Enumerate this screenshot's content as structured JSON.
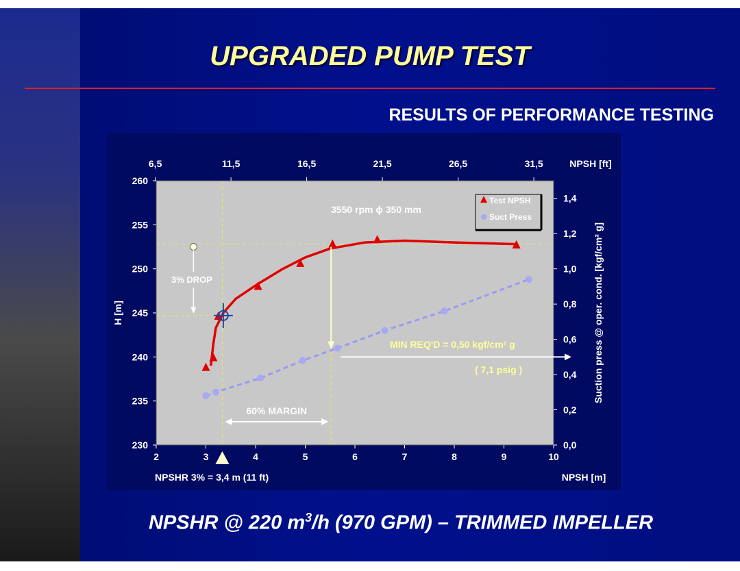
{
  "slide": {
    "title": "UPGRADED PUMP TEST",
    "subtitle": "RESULTS OF PERFORMANCE TESTING",
    "footer_prefix": "NPSHR @ 220 m",
    "footer_sup": "3",
    "footer_suffix": "/h (970 GPM) – TRIMMED IMPELLER",
    "colors": {
      "background": "#000e80",
      "title": "#ffff99",
      "rule": "#e02020",
      "plot_area": "#c8c8c8",
      "test_series": "#e00000",
      "suct_series": "#a0a0f0",
      "guide_lines": "#ffff99"
    }
  },
  "chart_data": {
    "type": "scatter",
    "x": {
      "label": "NPSH [m]",
      "min": 2,
      "max": 10,
      "ticks": [
        "2",
        "3",
        "4",
        "5",
        "6",
        "7",
        "8",
        "9",
        "10"
      ]
    },
    "x_top": {
      "label": "NPSH [ft]",
      "ticks": [
        "6,5",
        "11,5",
        "16,5",
        "21,5",
        "26,5",
        "31,5"
      ],
      "tick_values_ft": [
        6.5,
        11.5,
        16.5,
        21.5,
        26.5,
        31.5
      ]
    },
    "y_left": {
      "label": "H [m]",
      "min": 230,
      "max": 260,
      "ticks": [
        "230",
        "235",
        "240",
        "245",
        "250",
        "255",
        "260"
      ]
    },
    "y_right": {
      "label": "Suction press @ oper. cond.  [kgf/cm² g]",
      "min": 0,
      "max": 1.5,
      "ticks": [
        "0,0",
        "0,2",
        "0,4",
        "0,6",
        "0,8",
        "1,0",
        "1,2",
        "1,4"
      ],
      "tick_values": [
        0,
        0.2,
        0.4,
        0.6,
        0.8,
        1.0,
        1.2,
        1.4
      ]
    },
    "legend": {
      "position": "top-right"
    },
    "annotation_speed": "3550 rpm  ϕ 350 mm",
    "series": [
      {
        "name": "Test NPSH",
        "axis": "left",
        "marker": "triangle",
        "points": [
          [
            3.0,
            238.8
          ],
          [
            3.15,
            239.9
          ],
          [
            3.25,
            244.6
          ],
          [
            4.05,
            248.0
          ],
          [
            4.9,
            250.6
          ],
          [
            5.55,
            252.8
          ],
          [
            6.45,
            253.3
          ],
          [
            9.25,
            252.7
          ]
        ],
        "curve": [
          [
            3.1,
            239.0
          ],
          [
            3.15,
            241.5
          ],
          [
            3.2,
            243.3
          ],
          [
            3.35,
            245.0
          ],
          [
            3.6,
            246.6
          ],
          [
            4.05,
            248.3
          ],
          [
            4.55,
            250.0
          ],
          [
            5.0,
            251.3
          ],
          [
            5.5,
            252.3
          ],
          [
            6.2,
            253.0
          ],
          [
            7.0,
            253.2
          ],
          [
            8.0,
            253.0
          ],
          [
            9.25,
            252.8
          ]
        ]
      },
      {
        "name": "Suct Press",
        "axis": "right",
        "marker": "circle",
        "points": [
          [
            3.0,
            0.28
          ],
          [
            3.2,
            0.3
          ],
          [
            4.1,
            0.38
          ],
          [
            4.95,
            0.48
          ],
          [
            5.65,
            0.55
          ],
          [
            6.6,
            0.65
          ],
          [
            7.8,
            0.76
          ],
          [
            9.5,
            0.94
          ]
        ]
      }
    ],
    "annotations": {
      "drop_label": "3% DROP",
      "drop_marker": {
        "x": 2.75,
        "y": 252.5
      },
      "npshr_point": {
        "x": 3.35,
        "y": 244.7
      },
      "npshr_line_x": 3.33,
      "reference_h_line": 252.8,
      "drop_h_line": 244.7,
      "min_req_line_x": 5.52,
      "margin_label": "60% MARGIN",
      "min_req_label": "MIN REQ'D  = 0,50 kgf/cm² g",
      "min_req_psig": "( 7,1 psig )",
      "npshr_label": "NPSHR 3% = 3,4 m (11 ft)"
    }
  }
}
